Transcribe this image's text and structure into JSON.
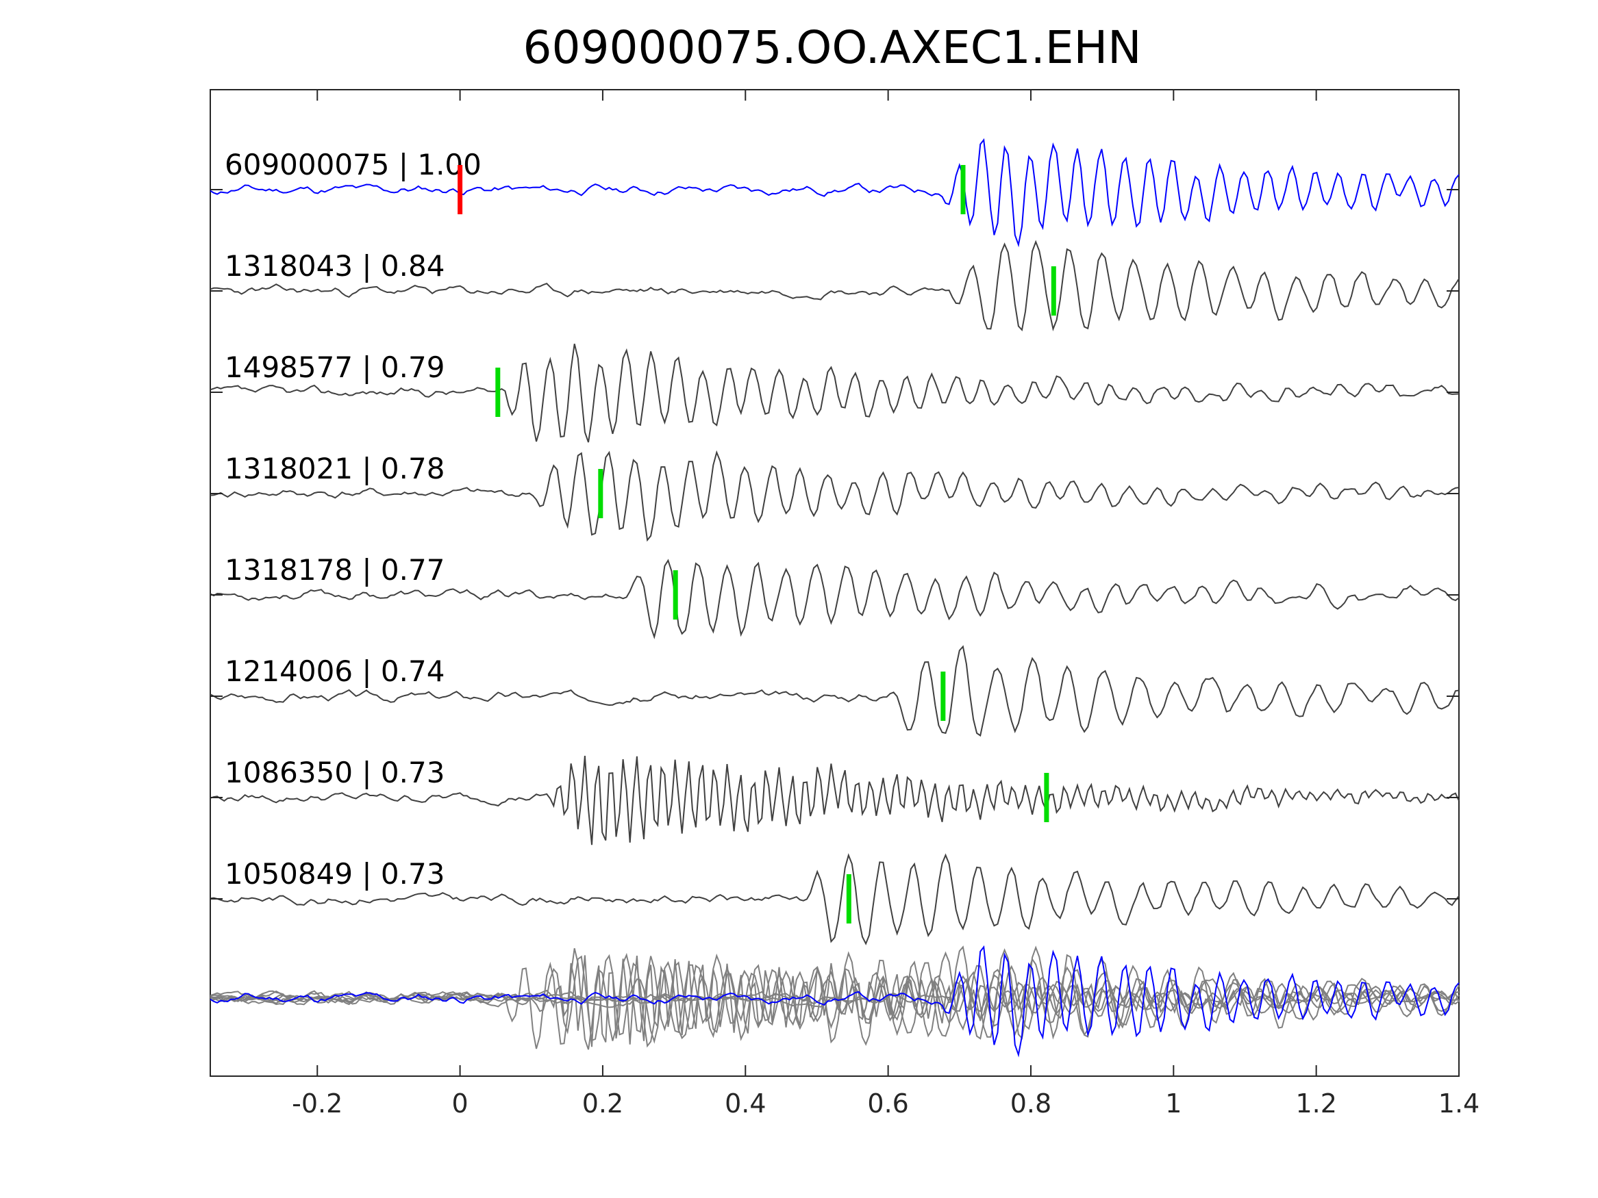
{
  "chart_data": {
    "type": "line",
    "title": "609000075.OO.AXEC1.EHN",
    "xlabel": "",
    "ylabel": "",
    "xlim": [
      -0.35,
      1.4
    ],
    "x_ticks": [
      -0.2,
      0,
      0.2,
      0.4,
      0.6,
      0.8,
      1,
      1.2,
      1.4
    ],
    "x_tick_labels": [
      "-0.2",
      "0",
      "0.2",
      "0.4",
      "0.6",
      "0.8",
      "1",
      "1.2",
      "1.4"
    ],
    "grid": false,
    "template_color": "#0000ff",
    "match_color": "#404040",
    "stack_color": "#808080",
    "pick_color": "#00dd00",
    "template_pick_color": "#ff0000",
    "traces": [
      {
        "id": "609000075",
        "cc": "1.00",
        "label": "609000075 | 1.00",
        "pick": 0.705,
        "template_pick": 0.0,
        "signal_start": 0.67,
        "amplitude": 1.0,
        "seed": 11,
        "dominant_freq": 30,
        "is_template": true
      },
      {
        "id": "1318043",
        "cc": "0.84",
        "label": "1318043 | 0.84",
        "pick": 0.832,
        "signal_start": 0.68,
        "amplitude": 0.95,
        "seed": 23,
        "dominant_freq": 22
      },
      {
        "id": "1498577",
        "cc": "0.79",
        "label": "1498577 | 0.79",
        "pick": 0.053,
        "signal_start": 0.05,
        "amplitude": 0.95,
        "seed": 37,
        "dominant_freq": 28
      },
      {
        "id": "1318021",
        "cc": "0.78",
        "label": "1318021 | 0.78",
        "pick": 0.197,
        "signal_start": 0.1,
        "amplitude": 0.9,
        "seed": 41,
        "dominant_freq": 26
      },
      {
        "id": "1318178",
        "cc": "0.77",
        "label": "1318178 | 0.77",
        "pick": 0.302,
        "signal_start": 0.22,
        "amplitude": 0.85,
        "seed": 53,
        "dominant_freq": 24
      },
      {
        "id": "1214006",
        "cc": "0.74",
        "label": "1214006 | 0.74",
        "pick": 0.677,
        "signal_start": 0.6,
        "amplitude": 0.85,
        "seed": 67,
        "dominant_freq": 20
      },
      {
        "id": "1086350",
        "cc": "0.73",
        "label": "1086350 | 0.73",
        "pick": 0.822,
        "signal_start": 0.12,
        "amplitude": 0.95,
        "seed": 79,
        "dominant_freq": 55
      },
      {
        "id": "1050849",
        "cc": "0.73",
        "label": "1050849 | 0.73",
        "pick": 0.545,
        "signal_start": 0.47,
        "amplitude": 0.9,
        "seed": 83,
        "dominant_freq": 22
      }
    ],
    "stack": {
      "description": "",
      "traces": 8
    }
  }
}
